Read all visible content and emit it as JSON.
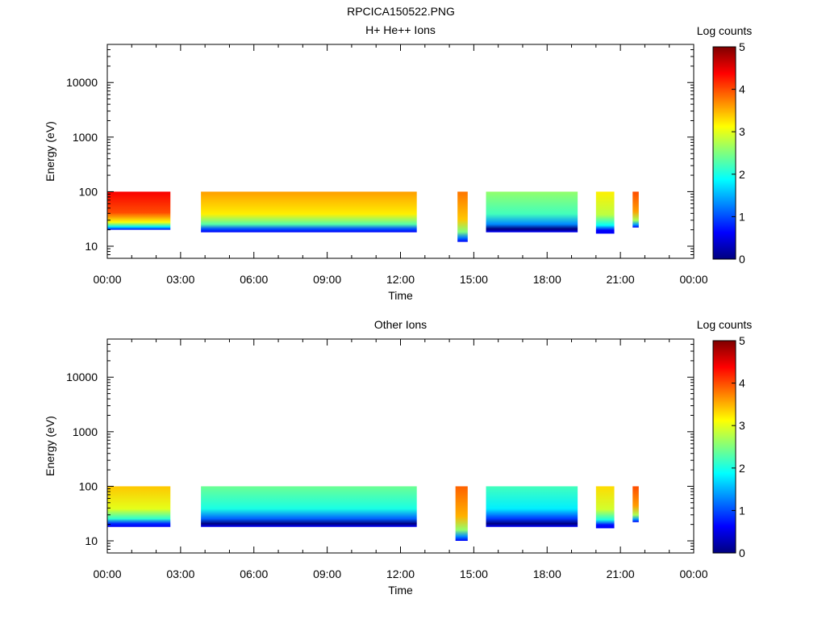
{
  "figure_title": "RPCICA150522.PNG",
  "chart_data": [
    {
      "type": "heatmap",
      "title": "H+ He++ Ions",
      "xlabel": "Time",
      "ylabel": "Energy (eV)",
      "y_scale": "log",
      "xlim": [
        "00:00",
        "24:00"
      ],
      "ylim": [
        6,
        50000
      ],
      "x_ticks": [
        "00:00",
        "03:00",
        "06:00",
        "09:00",
        "12:00",
        "15:00",
        "18:00",
        "21:00",
        "00:00"
      ],
      "y_ticks": [
        10,
        100,
        1000,
        10000
      ],
      "y_tick_labels": [
        "10",
        "100",
        "1000",
        "10000"
      ],
      "colorbar": {
        "label": "Log counts",
        "range": [
          0,
          5
        ],
        "ticks": [
          "0",
          "1",
          "2",
          "3",
          "4",
          "5"
        ]
      },
      "colormap": [
        "#00007f",
        "#0000ff",
        "#007fff",
        "#00ffff",
        "#7fff7f",
        "#ffff00",
        "#ff7f00",
        "#ff0000",
        "#7f0000"
      ],
      "data_blocks": [
        {
          "start": "00:00",
          "end": "02:35",
          "energy_max": 100,
          "energy_min": 20,
          "level": 4.4
        },
        {
          "start": "03:50",
          "end": "12:40",
          "energy_max": 100,
          "energy_min": 18,
          "level": 3.6
        },
        {
          "start": "14:20",
          "end": "14:45",
          "energy_max": 100,
          "energy_min": 12,
          "level": 3.8
        },
        {
          "start": "15:30",
          "end": "19:15",
          "energy_max": 100,
          "energy_min": 18,
          "level": 2.6
        },
        {
          "start": "20:00",
          "end": "20:45",
          "energy_max": 100,
          "energy_min": 17,
          "level": 3.2
        },
        {
          "start": "21:30",
          "end": "21:45",
          "energy_max": 100,
          "energy_min": 22,
          "level": 4.0
        }
      ]
    },
    {
      "type": "heatmap",
      "title": "Other Ions",
      "xlabel": "Time",
      "ylabel": "Energy (eV)",
      "y_scale": "log",
      "xlim": [
        "00:00",
        "24:00"
      ],
      "ylim": [
        6,
        50000
      ],
      "x_ticks": [
        "00:00",
        "03:00",
        "06:00",
        "09:00",
        "12:00",
        "15:00",
        "18:00",
        "21:00",
        "00:00"
      ],
      "y_ticks": [
        10,
        100,
        1000,
        10000
      ],
      "y_tick_labels": [
        "10",
        "100",
        "1000",
        "10000"
      ],
      "colorbar": {
        "label": "Log counts",
        "range": [
          0,
          5
        ],
        "ticks": [
          "0",
          "1",
          "2",
          "3",
          "4",
          "5"
        ]
      },
      "colormap": [
        "#00007f",
        "#0000ff",
        "#007fff",
        "#00ffff",
        "#7fff7f",
        "#ffff00",
        "#ff7f00",
        "#ff0000",
        "#7f0000"
      ],
      "data_blocks": [
        {
          "start": "00:00",
          "end": "02:35",
          "energy_max": 100,
          "energy_min": 18,
          "level": 3.4
        },
        {
          "start": "03:50",
          "end": "12:40",
          "energy_max": 100,
          "energy_min": 18,
          "level": 2.4
        },
        {
          "start": "14:15",
          "end": "14:45",
          "energy_max": 100,
          "energy_min": 10,
          "level": 3.9
        },
        {
          "start": "15:30",
          "end": "19:15",
          "energy_max": 100,
          "energy_min": 18,
          "level": 2.2
        },
        {
          "start": "20:00",
          "end": "20:45",
          "energy_max": 100,
          "energy_min": 17,
          "level": 3.3
        },
        {
          "start": "21:30",
          "end": "21:45",
          "energy_max": 100,
          "energy_min": 22,
          "level": 4.0
        }
      ]
    }
  ]
}
